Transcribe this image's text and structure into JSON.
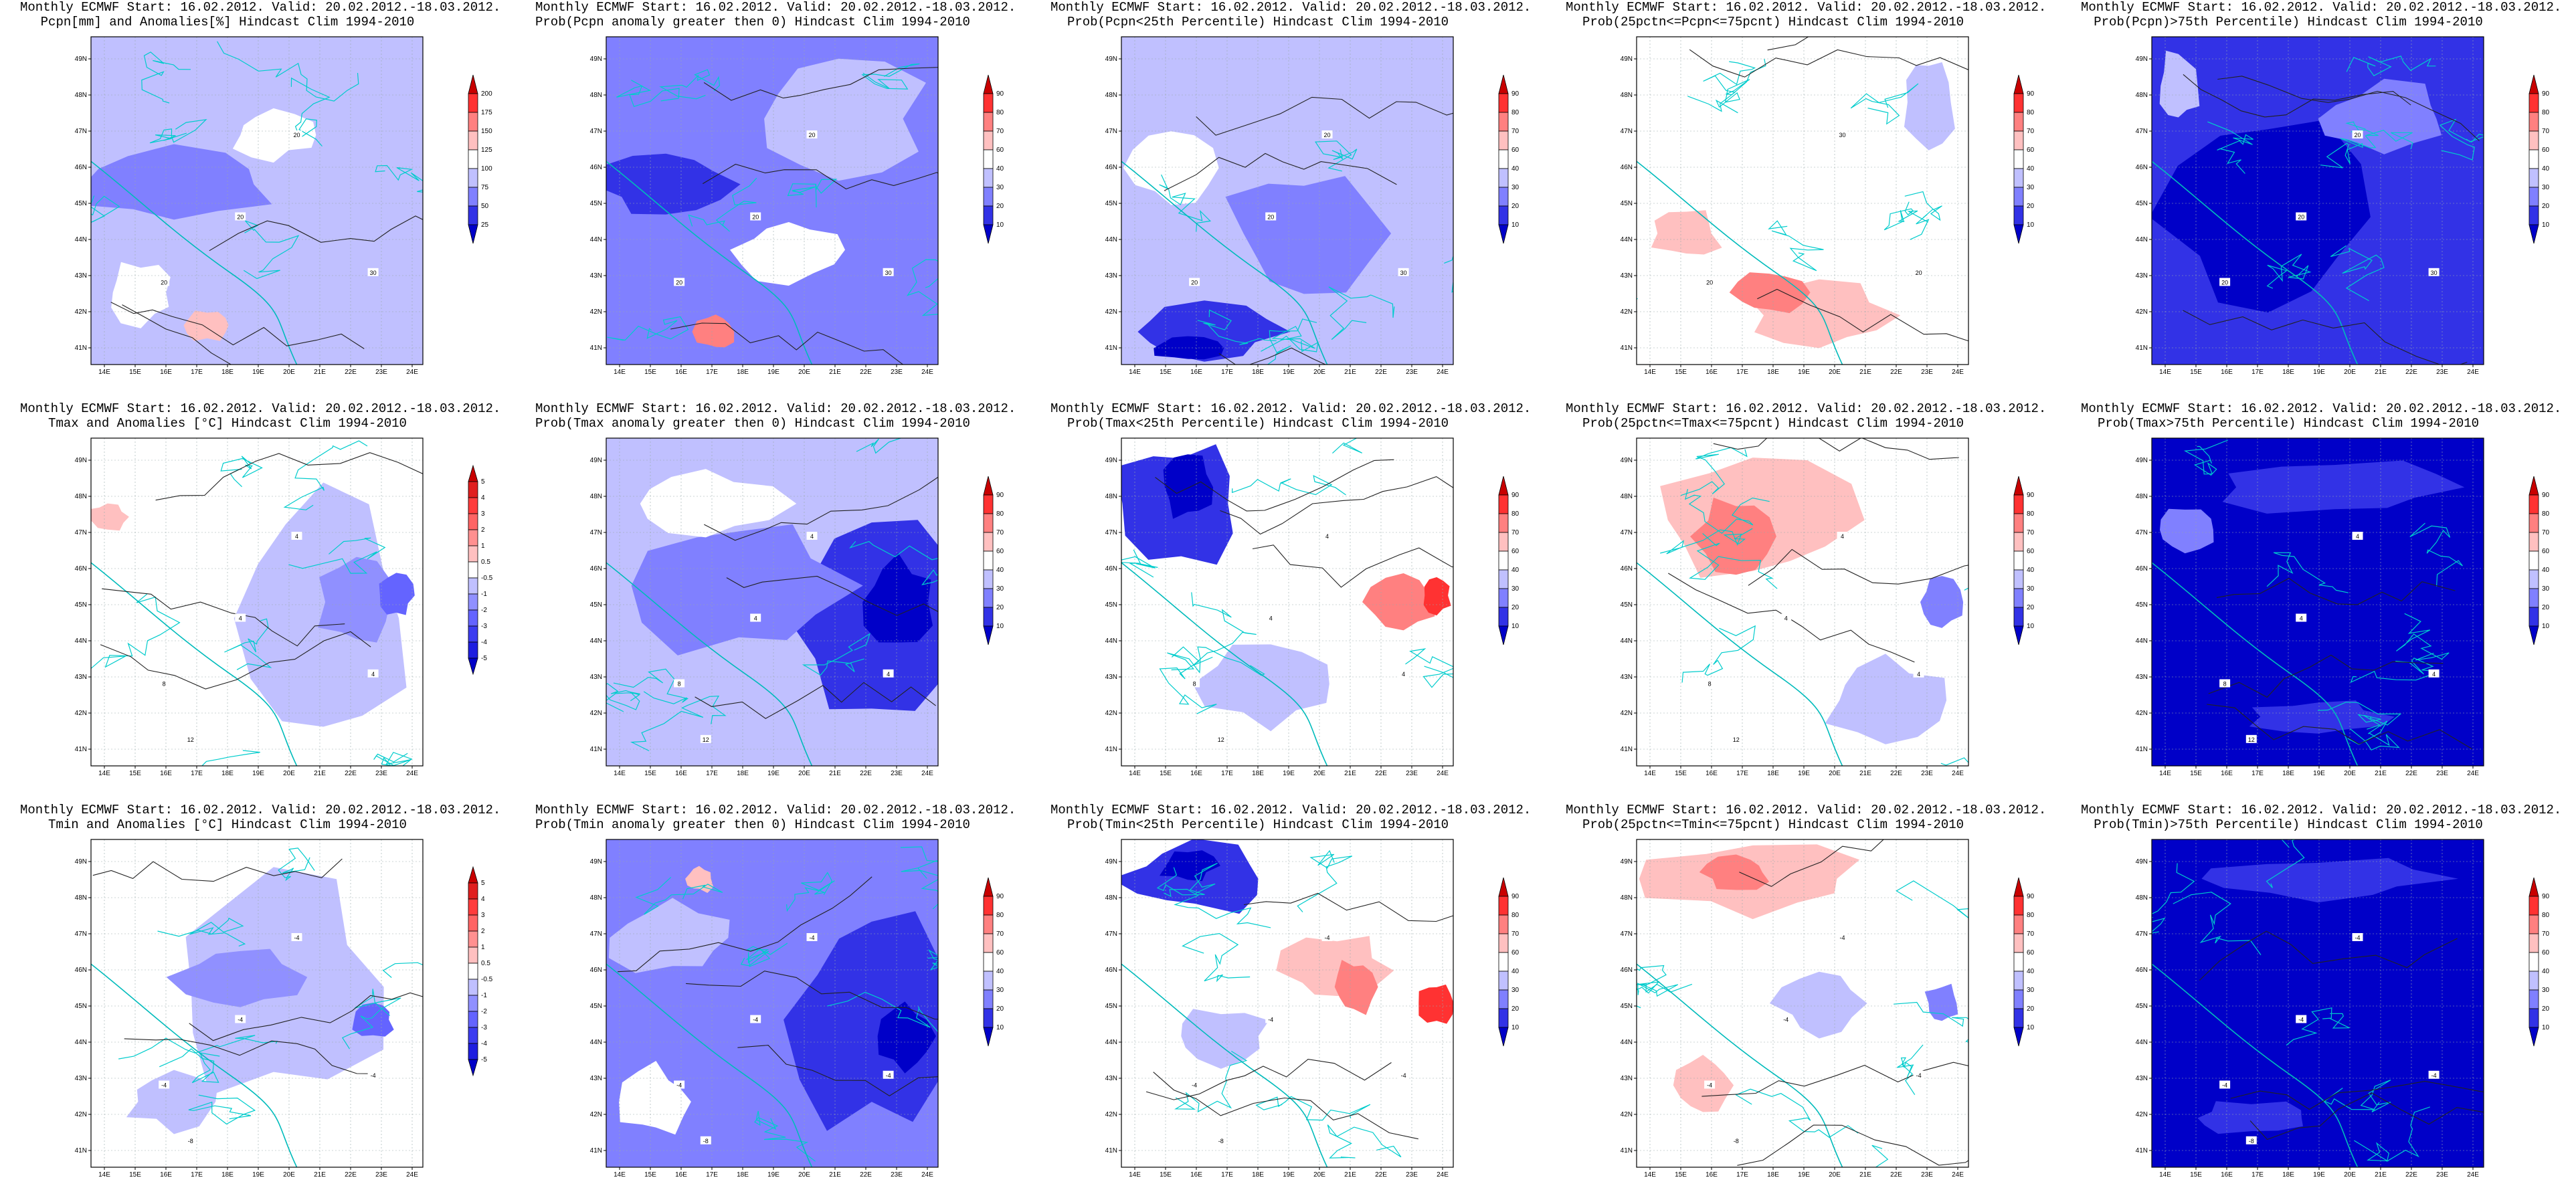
{
  "figure": {
    "panels": [
      {
        "title_line1": "Monthly ECMWF Start: 16.02.2012. Valid: 20.02.2012.-18.03.2012.",
        "title_line2": "Pcpn[mm] and Anomalies[%] Hindcast Clim 1994-2010",
        "colorbar_type": "pcpn"
      },
      {
        "title_line1": "Monthly ECMWF Start: 16.02.2012. Valid: 20.02.2012.-18.03.2012.",
        "title_line2": "Prob(Pcpn anomaly greater then 0) Hindcast Clim 1994-2010",
        "colorbar_type": "prob"
      },
      {
        "title_line1": "Monthly ECMWF Start: 16.02.2012. Valid: 20.02.2012.-18.03.2012.",
        "title_line2": "Prob(Pcpn<25th Percentile) Hindcast Clim 1994-2010",
        "colorbar_type": "prob"
      },
      {
        "title_line1": "Monthly ECMWF Start: 16.02.2012. Valid: 20.02.2012.-18.03.2012.",
        "title_line2": "Prob(25pctn<=Pcpn<=75pcnt) Hindcast Clim 1994-2010",
        "colorbar_type": "prob"
      },
      {
        "title_line1": "Monthly ECMWF Start: 16.02.2012. Valid: 20.02.2012.-18.03.2012.",
        "title_line2": "Prob(Pcpn)>75th Percentile) Hindcast Clim 1994-2010",
        "colorbar_type": "prob"
      },
      {
        "title_line1": "Monthly ECMWF Start: 16.02.2012. Valid: 20.02.2012.-18.03.2012.",
        "title_line2": "Tmax and Anomalies [°C] Hindcast Clim 1994-2010",
        "colorbar_type": "temp"
      },
      {
        "title_line1": "Monthly ECMWF Start: 16.02.2012. Valid: 20.02.2012.-18.03.2012.",
        "title_line2": "Prob(Tmax anomaly greater then 0) Hindcast Clim 1994-2010",
        "colorbar_type": "prob"
      },
      {
        "title_line1": "Monthly ECMWF Start: 16.02.2012. Valid: 20.02.2012.-18.03.2012.",
        "title_line2": "Prob(Tmax<25th Percentile) Hindcast Clim 1994-2010",
        "colorbar_type": "prob"
      },
      {
        "title_line1": "Monthly ECMWF Start: 16.02.2012. Valid: 20.02.2012.-18.03.2012.",
        "title_line2": "Prob(25pctn<=Tmax<=75pcnt) Hindcast Clim 1994-2010",
        "colorbar_type": "prob"
      },
      {
        "title_line1": "Monthly ECMWF Start: 16.02.2012. Valid: 20.02.2012.-18.03.2012.",
        "title_line2": "Prob(Tmax>75th Percentile) Hindcast Clim 1994-2010",
        "colorbar_type": "prob"
      },
      {
        "title_line1": "Monthly ECMWF Start: 16.02.2012. Valid: 20.02.2012.-18.03.2012.",
        "title_line2": "Tmin and Anomalies [°C] Hindcast Clim 1994-2010",
        "colorbar_type": "temp"
      },
      {
        "title_line1": "Monthly ECMWF Start: 16.02.2012. Valid: 20.02.2012.-18.03.2012.",
        "title_line2": "Prob(Tmin anomaly greater then 0) Hindcast Clim 1994-2010",
        "colorbar_type": "prob"
      },
      {
        "title_line1": "Monthly ECMWF Start: 16.02.2012. Valid: 20.02.2012.-18.03.2012.",
        "title_line2": "Prob(Tmin<25th Percentile) Hindcast Clim 1994-2010",
        "colorbar_type": "prob"
      },
      {
        "title_line1": "Monthly ECMWF Start: 16.02.2012. Valid: 20.02.2012.-18.03.2012.",
        "title_line2": "Prob(25pctn<=Tmin<=75pcnt) Hindcast Clim 1994-2010",
        "colorbar_type": "prob"
      },
      {
        "title_line1": "Monthly ECMWF Start: 16.02.2012. Valid: 20.02.2012.-18.03.2012.",
        "title_line2": "Prob(Tmin)>75th Percentile) Hindcast Clim 1994-2010",
        "colorbar_type": "prob"
      }
    ]
  },
  "chart_data": {
    "type": "heatmap",
    "map_extent": {
      "lon_range": [
        13.5,
        24
      ],
      "lat_range": [
        40.5,
        49.5
      ]
    },
    "x_ticks": [
      "14E",
      "15E",
      "16E",
      "17E",
      "18E",
      "19E",
      "20E",
      "21E",
      "22E",
      "23E",
      "24E"
    ],
    "y_ticks": [
      "41N",
      "42N",
      "43N",
      "44N",
      "45N",
      "46N",
      "47N",
      "48N",
      "49N"
    ],
    "colorbars": {
      "pcpn": {
        "levels": [
          "25",
          "50",
          "75",
          "100",
          "125",
          "150",
          "175",
          "200"
        ],
        "colors": [
          "#0000c8",
          "#3232e6",
          "#8080ff",
          "#c0c0ff",
          "#ffffff",
          "#ffc0c0",
          "#ff8080",
          "#ff3232",
          "#c80000"
        ]
      },
      "prob": {
        "levels": [
          "10",
          "20",
          "30",
          "40",
          "60",
          "70",
          "80",
          "90"
        ],
        "colors": [
          "#0000c8",
          "#3232e6",
          "#8080ff",
          "#c0c0ff",
          "#ffffff",
          "#ffc0c0",
          "#ff8080",
          "#ff3232",
          "#c80000"
        ]
      },
      "temp": {
        "levels": [
          "-5",
          "-4",
          "-3",
          "-2",
          "-1",
          "-0.5",
          "0.5",
          "1",
          "2",
          "3",
          "4",
          "5"
        ],
        "colors": [
          "#0000c8",
          "#1e1ee0",
          "#3c3cf0",
          "#6464ff",
          "#9090ff",
          "#c0c0ff",
          "#ffffff",
          "#ffc0c0",
          "#ff9090",
          "#ff6464",
          "#ff3c3c",
          "#e01e1e",
          "#c80000"
        ]
      }
    },
    "contour_labels": [
      [
        "20",
        "20",
        "30",
        "20"
      ],
      [
        "20",
        "20",
        "30",
        "20"
      ],
      [
        "20",
        "20",
        "30",
        "20"
      ],
      [
        "20",
        "30",
        "20"
      ],
      [
        "20",
        "20",
        "30",
        "20"
      ],
      [
        "8",
        "4",
        "4",
        "4",
        "12"
      ],
      [
        "8",
        "4",
        "4",
        "4",
        "12"
      ],
      [
        "8",
        "4",
        "4",
        "4",
        "12"
      ],
      [
        "8",
        "4",
        "4",
        "4",
        "12"
      ],
      [
        "8",
        "4",
        "4",
        "4",
        "12"
      ],
      [
        "-4",
        "-4",
        "-4",
        "-4",
        "-8"
      ],
      [
        "-4",
        "-4",
        "-4",
        "-4",
        "-8"
      ],
      [
        "-4",
        "-4",
        "-4",
        "-4",
        "-8"
      ],
      [
        "-4",
        "-4",
        "-4",
        "-4",
        "-8"
      ],
      [
        "-4",
        "-4",
        "-4",
        "-4",
        "-8"
      ]
    ]
  }
}
